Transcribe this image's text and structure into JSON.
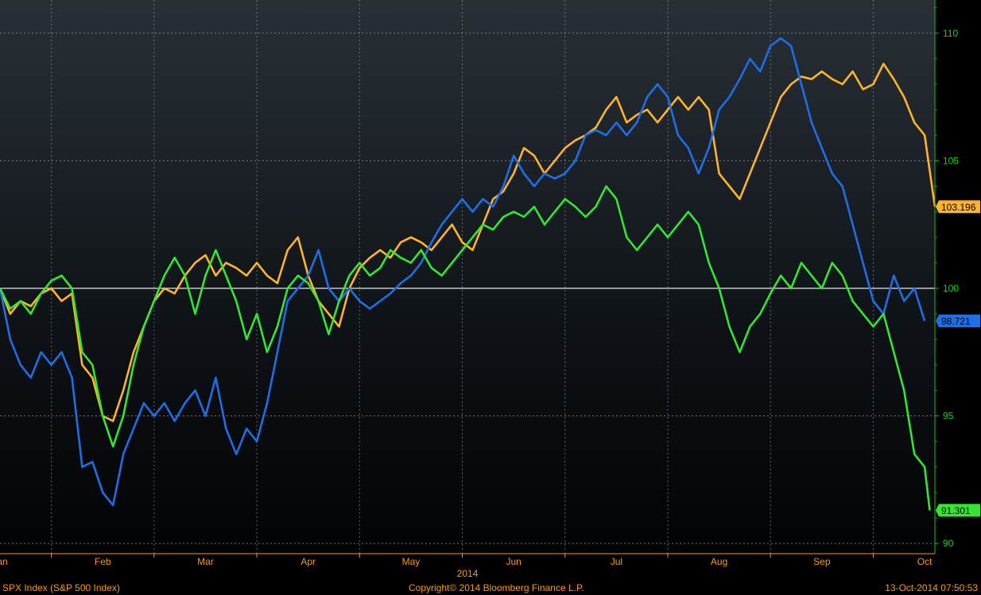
{
  "chart_data": {
    "type": "line",
    "title": "",
    "xlabel": "2014",
    "ylabel": "",
    "ylim": [
      89.6,
      111.3
    ],
    "yticks": [
      90,
      95,
      100,
      105,
      110
    ],
    "x_months": [
      "Jan",
      "Feb",
      "Mar",
      "Apr",
      "May",
      "Jun",
      "Jul",
      "Aug",
      "Sep",
      "Oct"
    ],
    "x_range": [
      0,
      9.1
    ],
    "grid": true,
    "baseline": 100,
    "series": [
      {
        "name": "",
        "color": "#ffb428",
        "last_label": "103.196",
        "points": [
          [
            0,
            100
          ],
          [
            0.1,
            99
          ],
          [
            0.2,
            99.5
          ],
          [
            0.3,
            99.3
          ],
          [
            0.4,
            99.8
          ],
          [
            0.5,
            100
          ],
          [
            0.6,
            99.5
          ],
          [
            0.7,
            99.8
          ],
          [
            0.8,
            97
          ],
          [
            0.9,
            96.5
          ],
          [
            1,
            95
          ],
          [
            1.1,
            94.8
          ],
          [
            1.2,
            96
          ],
          [
            1.3,
            97.5
          ],
          [
            1.4,
            98.5
          ],
          [
            1.5,
            99.5
          ],
          [
            1.6,
            100
          ],
          [
            1.7,
            99.8
          ],
          [
            1.8,
            100.5
          ],
          [
            1.9,
            101
          ],
          [
            2,
            101.3
          ],
          [
            2.1,
            100.5
          ],
          [
            2.2,
            101
          ],
          [
            2.3,
            100.8
          ],
          [
            2.4,
            100.5
          ],
          [
            2.5,
            101
          ],
          [
            2.6,
            100.5
          ],
          [
            2.7,
            100.2
          ],
          [
            2.8,
            101.5
          ],
          [
            2.9,
            102
          ],
          [
            3,
            100.5
          ],
          [
            3.1,
            99.5
          ],
          [
            3.2,
            99
          ],
          [
            3.3,
            98.5
          ],
          [
            3.4,
            100
          ],
          [
            3.5,
            100.8
          ],
          [
            3.6,
            101.2
          ],
          [
            3.7,
            101.5
          ],
          [
            3.8,
            101.2
          ],
          [
            3.9,
            101.8
          ],
          [
            4,
            102
          ],
          [
            4.1,
            101.8
          ],
          [
            4.2,
            101.5
          ],
          [
            4.3,
            102
          ],
          [
            4.4,
            102.5
          ],
          [
            4.5,
            101.8
          ],
          [
            4.6,
            101.5
          ],
          [
            4.7,
            102.5
          ],
          [
            4.8,
            103.5
          ],
          [
            4.9,
            103.8
          ],
          [
            5,
            104.5
          ],
          [
            5.1,
            105.5
          ],
          [
            5.2,
            105.2
          ],
          [
            5.3,
            104.5
          ],
          [
            5.4,
            105
          ],
          [
            5.5,
            105.5
          ],
          [
            5.6,
            105.8
          ],
          [
            5.7,
            106
          ],
          [
            5.8,
            106.3
          ],
          [
            5.9,
            107
          ],
          [
            6,
            107.5
          ],
          [
            6.1,
            106.5
          ],
          [
            6.2,
            106.8
          ],
          [
            6.3,
            107
          ],
          [
            6.4,
            106.5
          ],
          [
            6.5,
            107
          ],
          [
            6.6,
            107.5
          ],
          [
            6.7,
            107
          ],
          [
            6.8,
            107.5
          ],
          [
            6.9,
            107
          ],
          [
            7,
            104.5
          ],
          [
            7.1,
            104
          ],
          [
            7.2,
            103.5
          ],
          [
            7.3,
            104.5
          ],
          [
            7.4,
            105.5
          ],
          [
            7.5,
            106.5
          ],
          [
            7.6,
            107.5
          ],
          [
            7.7,
            108
          ],
          [
            7.8,
            108.3
          ],
          [
            7.9,
            108.2
          ],
          [
            8,
            108.5
          ],
          [
            8.1,
            108.2
          ],
          [
            8.2,
            108
          ],
          [
            8.3,
            108.5
          ],
          [
            8.4,
            107.8
          ],
          [
            8.5,
            108
          ],
          [
            8.6,
            108.8
          ],
          [
            8.7,
            108.2
          ],
          [
            8.8,
            107.5
          ],
          [
            8.9,
            106.5
          ],
          [
            9,
            106
          ],
          [
            9.1,
            103.2
          ]
        ]
      },
      {
        "name": "",
        "color": "#1e6ee6",
        "last_label": "98.721",
        "points": [
          [
            0,
            100
          ],
          [
            0.1,
            98
          ],
          [
            0.2,
            97
          ],
          [
            0.3,
            96.5
          ],
          [
            0.4,
            97.5
          ],
          [
            0.5,
            97
          ],
          [
            0.6,
            97.5
          ],
          [
            0.7,
            96.5
          ],
          [
            0.8,
            93
          ],
          [
            0.9,
            93.2
          ],
          [
            1,
            92
          ],
          [
            1.1,
            91.5
          ],
          [
            1.2,
            93.5
          ],
          [
            1.3,
            94.5
          ],
          [
            1.4,
            95.5
          ],
          [
            1.5,
            95
          ],
          [
            1.6,
            95.5
          ],
          [
            1.7,
            94.8
          ],
          [
            1.8,
            95.5
          ],
          [
            1.9,
            96
          ],
          [
            2,
            95
          ],
          [
            2.1,
            96.5
          ],
          [
            2.2,
            94.5
          ],
          [
            2.3,
            93.5
          ],
          [
            2.4,
            94.5
          ],
          [
            2.5,
            94
          ],
          [
            2.6,
            95.5
          ],
          [
            2.7,
            97.5
          ],
          [
            2.8,
            99.5
          ],
          [
            2.9,
            100
          ],
          [
            3,
            100.5
          ],
          [
            3.1,
            101.5
          ],
          [
            3.2,
            100
          ],
          [
            3.3,
            99.5
          ],
          [
            3.4,
            100
          ],
          [
            3.5,
            99.5
          ],
          [
            3.6,
            99.2
          ],
          [
            3.7,
            99.5
          ],
          [
            3.8,
            99.8
          ],
          [
            3.9,
            100.2
          ],
          [
            4,
            100.5
          ],
          [
            4.1,
            101
          ],
          [
            4.2,
            101.8
          ],
          [
            4.3,
            102.5
          ],
          [
            4.4,
            103
          ],
          [
            4.5,
            103.5
          ],
          [
            4.6,
            103
          ],
          [
            4.7,
            103.5
          ],
          [
            4.8,
            103.2
          ],
          [
            4.9,
            104
          ],
          [
            5,
            105.2
          ],
          [
            5.1,
            104.5
          ],
          [
            5.2,
            104
          ],
          [
            5.3,
            104.5
          ],
          [
            5.4,
            104.3
          ],
          [
            5.5,
            104.5
          ],
          [
            5.6,
            105
          ],
          [
            5.7,
            106
          ],
          [
            5.8,
            106.2
          ],
          [
            5.9,
            106
          ],
          [
            6,
            106.5
          ],
          [
            6.1,
            106
          ],
          [
            6.2,
            106.5
          ],
          [
            6.3,
            107.5
          ],
          [
            6.4,
            108
          ],
          [
            6.5,
            107.5
          ],
          [
            6.6,
            106
          ],
          [
            6.7,
            105.5
          ],
          [
            6.8,
            104.5
          ],
          [
            6.9,
            105.5
          ],
          [
            7,
            107
          ],
          [
            7.1,
            107.5
          ],
          [
            7.2,
            108.2
          ],
          [
            7.3,
            109
          ],
          [
            7.4,
            108.5
          ],
          [
            7.5,
            109.5
          ],
          [
            7.6,
            109.8
          ],
          [
            7.7,
            109.5
          ],
          [
            7.8,
            108
          ],
          [
            7.9,
            106.5
          ],
          [
            8,
            105.5
          ],
          [
            8.1,
            104.5
          ],
          [
            8.2,
            104
          ],
          [
            8.3,
            102.5
          ],
          [
            8.4,
            101
          ],
          [
            8.5,
            99.5
          ],
          [
            8.6,
            99
          ],
          [
            8.7,
            100.5
          ],
          [
            8.8,
            99.5
          ],
          [
            8.9,
            100
          ],
          [
            9,
            98.721
          ]
        ]
      },
      {
        "name": "",
        "color": "#32e632",
        "last_label": "91.301",
        "points": [
          [
            0,
            100
          ],
          [
            0.1,
            99.2
          ],
          [
            0.2,
            99.5
          ],
          [
            0.3,
            99
          ],
          [
            0.4,
            99.8
          ],
          [
            0.5,
            100.3
          ],
          [
            0.6,
            100.5
          ],
          [
            0.7,
            100
          ],
          [
            0.8,
            97.5
          ],
          [
            0.9,
            97
          ],
          [
            1,
            95
          ],
          [
            1.1,
            93.8
          ],
          [
            1.2,
            95
          ],
          [
            1.3,
            97
          ],
          [
            1.4,
            98.5
          ],
          [
            1.5,
            99.5
          ],
          [
            1.6,
            100.5
          ],
          [
            1.7,
            101.2
          ],
          [
            1.8,
            100.5
          ],
          [
            1.9,
            99
          ],
          [
            2,
            100.5
          ],
          [
            2.1,
            101.5
          ],
          [
            2.2,
            100.5
          ],
          [
            2.3,
            99.5
          ],
          [
            2.4,
            98
          ],
          [
            2.5,
            99
          ],
          [
            2.6,
            97.5
          ],
          [
            2.7,
            98.5
          ],
          [
            2.8,
            100
          ],
          [
            2.9,
            100.5
          ],
          [
            3,
            100.2
          ],
          [
            3.1,
            99.5
          ],
          [
            3.2,
            98.2
          ],
          [
            3.3,
            99.5
          ],
          [
            3.4,
            100.5
          ],
          [
            3.5,
            101
          ],
          [
            3.6,
            100.5
          ],
          [
            3.7,
            100.8
          ],
          [
            3.8,
            101.5
          ],
          [
            3.9,
            101.2
          ],
          [
            4,
            101
          ],
          [
            4.1,
            101.5
          ],
          [
            4.2,
            100.8
          ],
          [
            4.3,
            100.5
          ],
          [
            4.4,
            101
          ],
          [
            4.5,
            101.5
          ],
          [
            4.6,
            102
          ],
          [
            4.7,
            102.5
          ],
          [
            4.8,
            102.3
          ],
          [
            4.9,
            102.8
          ],
          [
            5,
            103
          ],
          [
            5.1,
            102.8
          ],
          [
            5.2,
            103.2
          ],
          [
            5.3,
            102.5
          ],
          [
            5.4,
            103
          ],
          [
            5.5,
            103.5
          ],
          [
            5.6,
            103.2
          ],
          [
            5.7,
            102.8
          ],
          [
            5.8,
            103.2
          ],
          [
            5.9,
            104
          ],
          [
            6,
            103.5
          ],
          [
            6.1,
            102
          ],
          [
            6.2,
            101.5
          ],
          [
            6.3,
            102
          ],
          [
            6.4,
            102.5
          ],
          [
            6.5,
            102
          ],
          [
            6.6,
            102.5
          ],
          [
            6.7,
            103
          ],
          [
            6.8,
            102.5
          ],
          [
            6.9,
            101
          ],
          [
            7,
            100
          ],
          [
            7.1,
            98.5
          ],
          [
            7.2,
            97.5
          ],
          [
            7.3,
            98.5
          ],
          [
            7.4,
            99
          ],
          [
            7.5,
            99.8
          ],
          [
            7.6,
            100.5
          ],
          [
            7.7,
            100
          ],
          [
            7.8,
            101
          ],
          [
            7.9,
            100.5
          ],
          [
            8,
            100
          ],
          [
            8.1,
            101
          ],
          [
            8.2,
            100.5
          ],
          [
            8.3,
            99.5
          ],
          [
            8.4,
            99
          ],
          [
            8.5,
            98.5
          ],
          [
            8.6,
            99
          ],
          [
            8.7,
            97.5
          ],
          [
            8.8,
            96
          ],
          [
            8.9,
            93.5
          ],
          [
            9,
            93
          ],
          [
            9.05,
            91.301
          ]
        ]
      }
    ]
  },
  "footer": {
    "left": "SPX Index (S&P 500 Index)",
    "center": "Copyright© 2014 Bloomberg Finance L.P.",
    "right": "13-Oct-2014 07:50:53"
  }
}
